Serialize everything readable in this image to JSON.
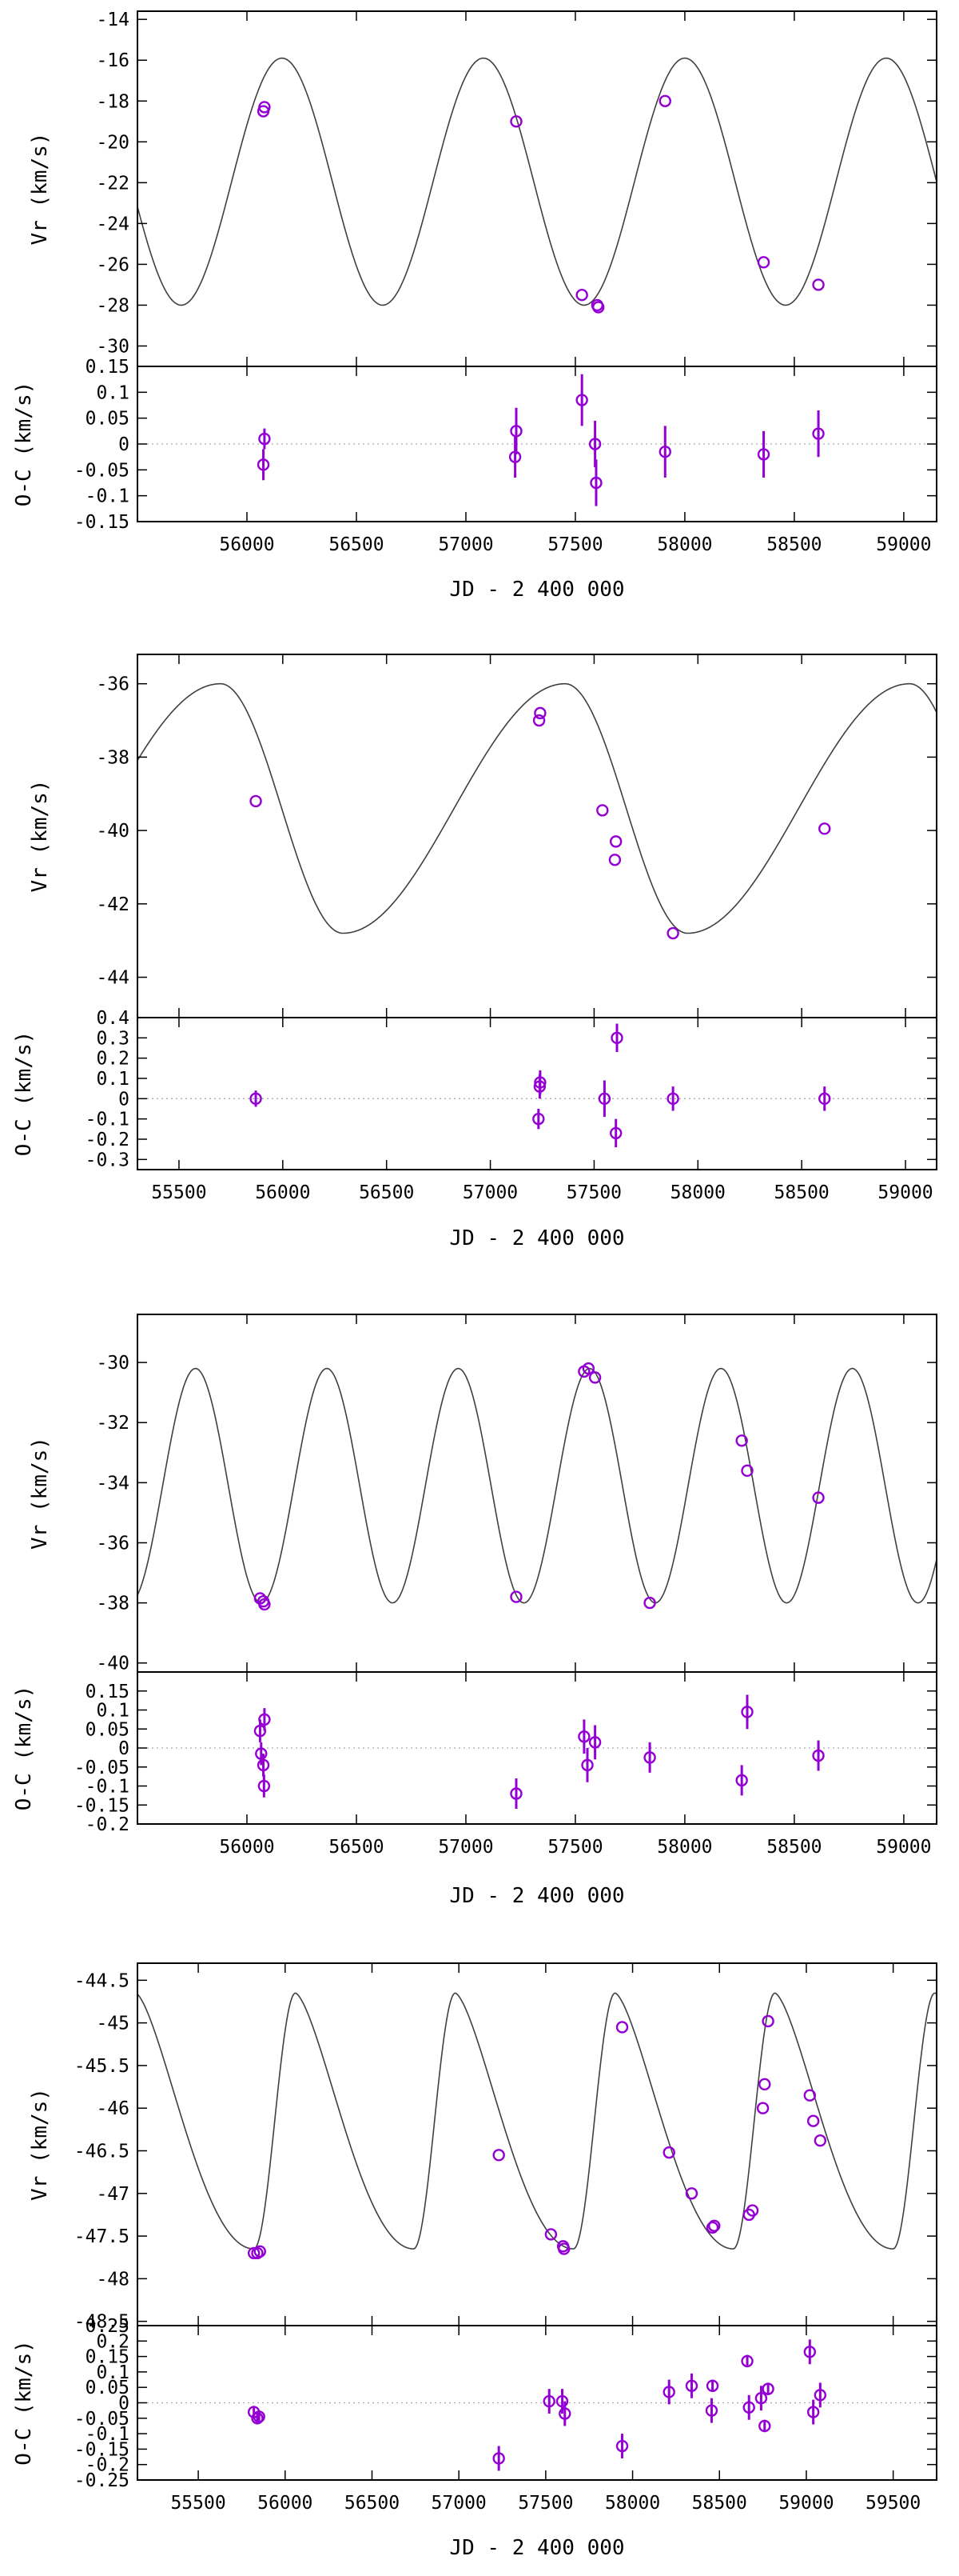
{
  "colors": {
    "points": "#9400D3",
    "model": "#404040",
    "zero_line": "#aaaaaa"
  },
  "chart_data": [
    {
      "type": "line+scatter",
      "panel": "orbit-1",
      "period": 920,
      "amplitude_max": -15.9,
      "amplitude_min": -28.0,
      "curve_phase_ref": 56160,
      "curve_shape": "sinusoidal",
      "top": {
        "ylabel": "Vr (km/s)",
        "ylim": [
          -31,
          -13.6
        ],
        "yticks": [
          "-14",
          "-16",
          "-18",
          "-20",
          "-22",
          "-24",
          "-26",
          "-28",
          "-30"
        ],
        "points": [
          [
            56080,
            -18.3
          ],
          [
            56075,
            -18.5
          ],
          [
            57230,
            -19.0
          ],
          [
            57530,
            -27.5
          ],
          [
            57600,
            -28.0
          ],
          [
            57605,
            -28.1
          ],
          [
            57910,
            -18.0
          ],
          [
            58360,
            -25.9
          ],
          [
            58610,
            -27.0
          ]
        ]
      },
      "bottom": {
        "ylabel": "O-C (km/s)",
        "ylim": [
          -0.15,
          0.15
        ],
        "yticks": [
          "0.15",
          "0.1",
          "0.05",
          "0",
          "-0.05",
          "-0.1",
          "-0.15"
        ],
        "points": [
          [
            56080,
            0.01,
            0.02
          ],
          [
            56075,
            -0.04,
            0.03
          ],
          [
            57230,
            0.025,
            0.045
          ],
          [
            57225,
            -0.025,
            0.04
          ],
          [
            57530,
            0.085,
            0.05
          ],
          [
            57590,
            0.0,
            0.045
          ],
          [
            57595,
            -0.075,
            0.045
          ],
          [
            57910,
            -0.015,
            0.05
          ],
          [
            58360,
            -0.02,
            0.045
          ],
          [
            58610,
            0.02,
            0.045
          ]
        ]
      },
      "xlabel": "JD - 2 400 000",
      "xlim": [
        55500,
        59150
      ],
      "xticks": [
        "56000",
        "56500",
        "57000",
        "57500",
        "58000",
        "58500",
        "59000"
      ]
    },
    {
      "type": "line+scatter",
      "panel": "orbit-2",
      "period": 1660,
      "amplitude_max": -36.0,
      "amplitude_min": -42.8,
      "curve_peak": 55700,
      "curve_trough": 56290,
      "curve_shape": "eccentric",
      "top": {
        "ylabel": "Vr (km/s)",
        "ylim": [
          -45.1,
          -35.2
        ],
        "yticks": [
          "-36",
          "-38",
          "-40",
          "-42",
          "-44"
        ],
        "points": [
          [
            55870,
            -39.2
          ],
          [
            57240,
            -36.8
          ],
          [
            57235,
            -37.0
          ],
          [
            57540,
            -39.45
          ],
          [
            57605,
            -40.3
          ],
          [
            57600,
            -40.8
          ],
          [
            57880,
            -42.8
          ],
          [
            58610,
            -39.95
          ]
        ]
      },
      "bottom": {
        "ylabel": "O-C (km/s)",
        "ylim": [
          -0.35,
          0.4
        ],
        "yticks": [
          "0.4",
          "0.3",
          "0.2",
          "0.1",
          "0",
          "-0.1",
          "-0.2",
          "-0.3"
        ],
        "points": [
          [
            55870,
            0.0,
            0.04
          ],
          [
            57240,
            0.08,
            0.06
          ],
          [
            57238,
            0.06,
            0.06
          ],
          [
            57232,
            -0.1,
            0.05
          ],
          [
            57550,
            0.0,
            0.09
          ],
          [
            57610,
            0.3,
            0.07
          ],
          [
            57605,
            -0.17,
            0.07
          ],
          [
            57880,
            0.0,
            0.06
          ],
          [
            58610,
            0.0,
            0.06
          ]
        ]
      },
      "xlabel": "JD - 2 400 000",
      "xlim": [
        55300,
        59150
      ],
      "xticks": [
        "55500",
        "56000",
        "56500",
        "57000",
        "57500",
        "58000",
        "58500",
        "59000"
      ]
    },
    {
      "type": "line+scatter",
      "panel": "orbit-3",
      "period": 600,
      "amplitude_max": -30.2,
      "amplitude_min": -38.0,
      "curve_peak": 55765,
      "curve_shape": "sinusoidal",
      "top": {
        "ylabel": "Vr (km/s)",
        "ylim": [
          -40.3,
          -28.4
        ],
        "yticks": [
          "-30",
          "-32",
          "-34",
          "-36",
          "-38",
          "-40"
        ],
        "points": [
          [
            56060,
            -37.85
          ],
          [
            56075,
            -37.95
          ],
          [
            56080,
            -38.05
          ],
          [
            57230,
            -37.8
          ],
          [
            57540,
            -30.3
          ],
          [
            57560,
            -30.2
          ],
          [
            57590,
            -30.5
          ],
          [
            57840,
            -38.0
          ],
          [
            58260,
            -32.6
          ],
          [
            58285,
            -33.6
          ],
          [
            58610,
            -34.5
          ]
        ]
      },
      "bottom": {
        "ylabel": "O-C (km/s)",
        "ylim": [
          -0.2,
          0.2
        ],
        "yticks": [
          "0.15",
          "0.1",
          "0.05",
          "0",
          "-0.05",
          "-0.1",
          "-0.15",
          "-0.2"
        ],
        "points": [
          [
            56080,
            0.075,
            0.03
          ],
          [
            56060,
            0.045,
            0.03
          ],
          [
            56065,
            -0.015,
            0.03
          ],
          [
            56075,
            -0.045,
            0.03
          ],
          [
            56078,
            -0.1,
            0.03
          ],
          [
            57230,
            -0.12,
            0.04
          ],
          [
            57540,
            0.03,
            0.045
          ],
          [
            57555,
            -0.045,
            0.045
          ],
          [
            57590,
            0.015,
            0.045
          ],
          [
            57840,
            -0.025,
            0.04
          ],
          [
            58260,
            -0.085,
            0.04
          ],
          [
            58285,
            0.095,
            0.045
          ],
          [
            58610,
            -0.02,
            0.04
          ]
        ]
      },
      "xlabel": "JD - 2 400 000",
      "xlim": [
        55500,
        59150
      ],
      "xticks": [
        "56000",
        "56500",
        "57000",
        "57500",
        "58000",
        "58500",
        "59000"
      ]
    },
    {
      "type": "line+scatter",
      "panel": "orbit-4",
      "period": 920,
      "amplitude_max": -44.65,
      "amplitude_min": -47.65,
      "curve_peak": 56060,
      "curve_trough": 55820,
      "curve_shape": "sawtooth",
      "top": {
        "ylabel": "Vr (km/s)",
        "ylim": [
          -48.55,
          -44.3
        ],
        "yticks": [
          "-44.5",
          "-45",
          "-45.5",
          "-46",
          "-46.5",
          "-47",
          "-47.5",
          "-48",
          "-48.5"
        ],
        "points": [
          [
            55820,
            -47.7
          ],
          [
            55840,
            -47.7
          ],
          [
            55855,
            -47.68
          ],
          [
            57230,
            -46.55
          ],
          [
            57530,
            -47.48
          ],
          [
            57600,
            -47.62
          ],
          [
            57605,
            -47.65
          ],
          [
            57940,
            -45.05
          ],
          [
            58210,
            -46.52
          ],
          [
            58340,
            -47.0
          ],
          [
            58460,
            -47.4
          ],
          [
            58470,
            -47.38
          ],
          [
            58670,
            -47.25
          ],
          [
            58690,
            -47.2
          ],
          [
            58750,
            -46.0
          ],
          [
            58760,
            -45.72
          ],
          [
            58780,
            -44.98
          ],
          [
            59020,
            -45.85
          ],
          [
            59040,
            -46.15
          ],
          [
            59080,
            -46.38
          ]
        ]
      },
      "bottom": {
        "ylabel": "O-C (km/s)",
        "ylim": [
          -0.25,
          0.25
        ],
        "yticks": [
          "0.25",
          "0.2",
          "0.15",
          "0.1",
          "0.05",
          "0",
          "-0.05",
          "-0.1",
          "-0.15",
          "-0.2",
          "-0.25"
        ],
        "points": [
          [
            55820,
            -0.03,
            0.02
          ],
          [
            55840,
            -0.05,
            0.02
          ],
          [
            55850,
            -0.045,
            0.02
          ],
          [
            57230,
            -0.18,
            0.04
          ],
          [
            57520,
            0.005,
            0.04
          ],
          [
            57595,
            0.005,
            0.04
          ],
          [
            57610,
            -0.035,
            0.04
          ],
          [
            57940,
            -0.14,
            0.04
          ],
          [
            58210,
            0.035,
            0.04
          ],
          [
            58340,
            0.055,
            0.04
          ],
          [
            58460,
            0.055,
            0.02
          ],
          [
            58455,
            -0.025,
            0.04
          ],
          [
            58660,
            0.135,
            0.02
          ],
          [
            58670,
            -0.015,
            0.04
          ],
          [
            58740,
            0.015,
            0.04
          ],
          [
            58760,
            -0.075,
            0.02
          ],
          [
            58780,
            0.045,
            0.02
          ],
          [
            59020,
            0.165,
            0.04
          ],
          [
            59040,
            -0.03,
            0.04
          ],
          [
            59080,
            0.025,
            0.04
          ]
        ]
      },
      "xlabel": "JD - 2 400 000",
      "xlim": [
        55150,
        59750
      ],
      "xticks": [
        "55500",
        "56000",
        "56500",
        "57000",
        "57500",
        "58000",
        "58500",
        "59000",
        "59500"
      ]
    }
  ]
}
